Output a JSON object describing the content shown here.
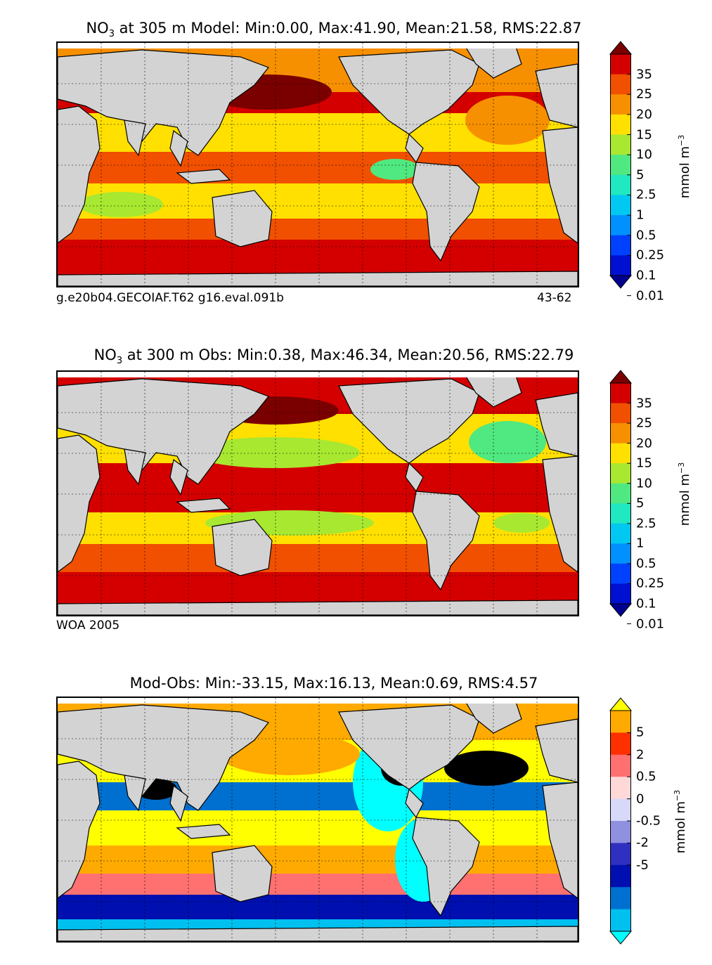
{
  "panels": [
    {
      "title_prefix": "NO",
      "title_sub": "3",
      "title_rest": " at 305 m Model: Min:0.00, Max:41.90, Mean:21.58, RMS:22.87",
      "caption_left": "g.e20b04.GECOIAF.T62 g16.eval.091b",
      "caption_right": "43-62",
      "colorbar": {
        "ticks": [
          "35",
          "25",
          "20",
          "15",
          "10",
          "5",
          "2.5",
          "1",
          "0.5",
          "0.25",
          "0.1",
          "0.01"
        ],
        "colors": [
          "#7a0000",
          "#d40000",
          "#f05000",
          "#f79000",
          "#ffe000",
          "#a8e830",
          "#50e880",
          "#20e8c0",
          "#00c8f0",
          "#0090ff",
          "#0040ff",
          "#0010d0",
          "#000090"
        ],
        "unit": "mmol m",
        "unit_sup": "−3"
      }
    },
    {
      "title_prefix": "NO",
      "title_sub": "3",
      "title_rest": " at 300 m Obs: Min:0.38, Max:46.34, Mean:20.56, RMS:22.79",
      "caption_left": "WOA 2005",
      "caption_right": "",
      "colorbar": {
        "ticks": [
          "35",
          "25",
          "20",
          "15",
          "10",
          "5",
          "2.5",
          "1",
          "0.5",
          "0.25",
          "0.1",
          "0.01"
        ],
        "colors": [
          "#7a0000",
          "#d40000",
          "#f05000",
          "#f79000",
          "#ffe000",
          "#a8e830",
          "#50e880",
          "#20e8c0",
          "#00c8f0",
          "#0090ff",
          "#0040ff",
          "#0010d0",
          "#000090"
        ],
        "unit": "mmol m",
        "unit_sup": "−3"
      }
    },
    {
      "title_prefix": "",
      "title_sub": "",
      "title_rest": "Mod-Obs: Min:-33.15, Max:16.13, Mean:0.69, RMS:4.57",
      "caption_left": "",
      "caption_right": "",
      "colorbar": {
        "ticks": [
          "5",
          "2",
          "0.5",
          "0",
          "-0.5",
          "-2",
          "-5"
        ],
        "colors": [
          "#ffff00",
          "#ffaa00",
          "#ff3000",
          "#ff7070",
          "#ffd8d8",
          "#d8d8f8",
          "#9090e0",
          "#3030c0",
          "#0010b0",
          "#0070d0",
          "#00c0f0",
          "#00ffff"
        ],
        "unit": "mmol m",
        "unit_sup": "−3"
      }
    }
  ],
  "legend_colors": {
    "land": "#d3d3d3",
    "no_data": "#ffffff",
    "coast": "#000000"
  }
}
